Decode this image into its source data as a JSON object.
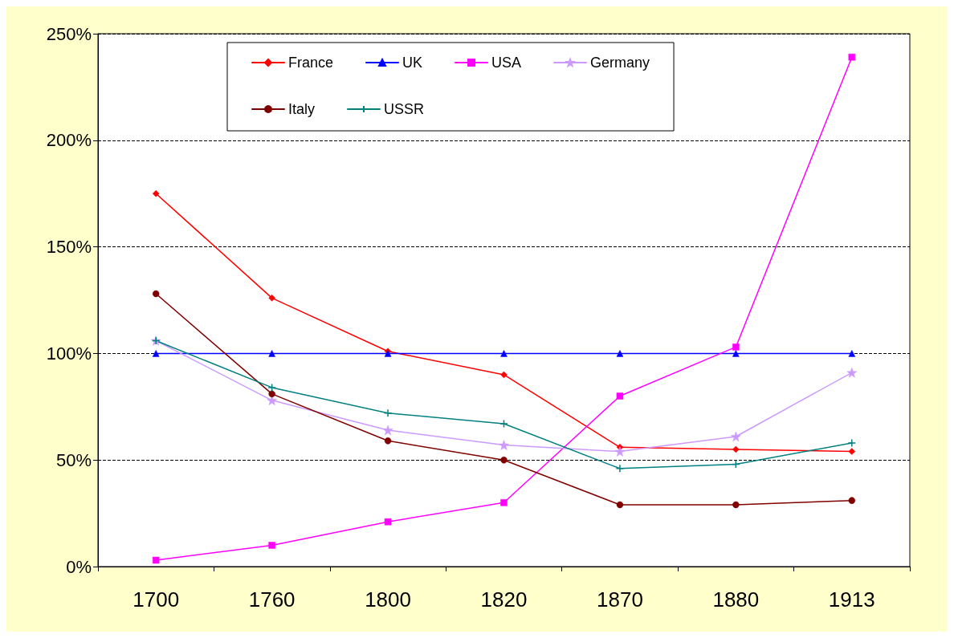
{
  "chart_data": {
    "type": "line",
    "categories": [
      "1700",
      "1760",
      "1800",
      "1820",
      "1870",
      "1880",
      "1913"
    ],
    "series": [
      {
        "name": "France",
        "color": "#ff0000",
        "marker": "diamond",
        "values": [
          175,
          126,
          101,
          90,
          56,
          55,
          54
        ]
      },
      {
        "name": "UK",
        "color": "#0000ff",
        "marker": "triangle",
        "values": [
          100,
          100,
          100,
          100,
          100,
          100,
          100
        ]
      },
      {
        "name": "USA",
        "color": "#ff00ff",
        "marker": "square",
        "values": [
          3,
          10,
          21,
          30,
          80,
          103,
          239
        ]
      },
      {
        "name": "Germany",
        "color": "#cc99ff",
        "marker": "star",
        "values": [
          106,
          78,
          64,
          57,
          54,
          61,
          91
        ]
      },
      {
        "name": "Italy",
        "color": "#800000",
        "marker": "circle",
        "values": [
          128,
          81,
          59,
          50,
          29,
          29,
          31
        ]
      },
      {
        "name": "USSR",
        "color": "#008080",
        "marker": "cross",
        "values": [
          106,
          84,
          72,
          67,
          46,
          48,
          58
        ]
      }
    ],
    "ylim": [
      0,
      250
    ],
    "yticks": [
      {
        "value": 0,
        "label": "0%"
      },
      {
        "value": 50,
        "label": "50%"
      },
      {
        "value": 100,
        "label": "100%"
      },
      {
        "value": 150,
        "label": "150%"
      },
      {
        "value": 200,
        "label": "200%"
      },
      {
        "value": 250,
        "label": "250%"
      }
    ],
    "grid": "y",
    "legend": "top",
    "line_style": "solid"
  }
}
